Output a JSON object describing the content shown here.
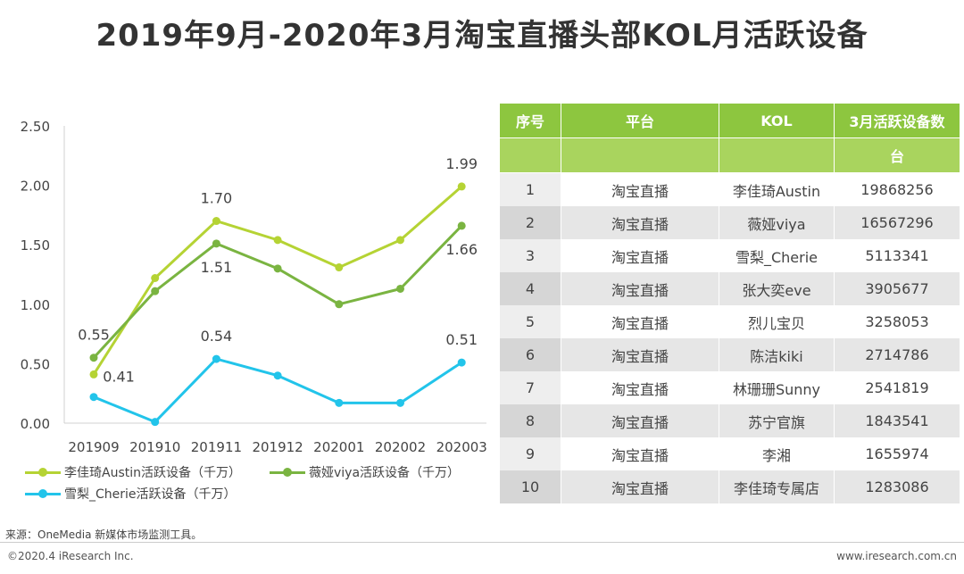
{
  "title": "2019年9月-2020年3月淘宝直播头部KOL月活跃设备",
  "chart_data": {
    "type": "line",
    "categories": [
      "201909",
      "201910",
      "201911",
      "201912",
      "202001",
      "202002",
      "202003"
    ],
    "series": [
      {
        "name": "李佳琦Austin活跃设备（千万）",
        "color": "#b5d334",
        "values": [
          0.41,
          1.22,
          1.7,
          1.54,
          1.31,
          1.54,
          1.99
        ],
        "labels": [
          "0.41",
          null,
          "1.70",
          null,
          null,
          null,
          "1.99"
        ]
      },
      {
        "name": "薇娅viya活跃设备（千万）",
        "color": "#7ab441",
        "values": [
          0.55,
          1.11,
          1.51,
          1.3,
          1.0,
          1.13,
          1.66
        ],
        "labels": [
          "0.55",
          null,
          "1.51",
          null,
          null,
          null,
          "1.66"
        ]
      },
      {
        "name": "雪梨_Cherie活跃设备（千万）",
        "color": "#22c4ea",
        "values": [
          0.22,
          0.01,
          0.54,
          0.4,
          0.17,
          0.17,
          0.51
        ],
        "labels": [
          null,
          null,
          "0.54",
          null,
          null,
          null,
          "0.51"
        ]
      }
    ],
    "ylim": [
      0,
      2.5
    ],
    "yticks": [
      "0.00",
      "0.50",
      "1.00",
      "1.50",
      "2.00",
      "2.50"
    ],
    "ytick_values": [
      0,
      0.5,
      1.0,
      1.5,
      2.0,
      2.5
    ],
    "xlabel": "",
    "ylabel": "",
    "grid": false,
    "legend": "bottom"
  },
  "table": {
    "headers": [
      "序号",
      "平台",
      "KOL",
      "3月活跃设备数"
    ],
    "unit": "台",
    "rows": [
      {
        "idx": "1",
        "platform": "淘宝直播",
        "kol": "李佳琦Austin",
        "devices": "19868256"
      },
      {
        "idx": "2",
        "platform": "淘宝直播",
        "kol": "薇娅viya",
        "devices": "16567296"
      },
      {
        "idx": "3",
        "platform": "淘宝直播",
        "kol": "雪梨_Cherie",
        "devices": "5113341"
      },
      {
        "idx": "4",
        "platform": "淘宝直播",
        "kol": "张大奕eve",
        "devices": "3905677"
      },
      {
        "idx": "5",
        "platform": "淘宝直播",
        "kol": "烈儿宝贝",
        "devices": "3258053"
      },
      {
        "idx": "6",
        "platform": "淘宝直播",
        "kol": "陈洁kiki",
        "devices": "2714786"
      },
      {
        "idx": "7",
        "platform": "淘宝直播",
        "kol": "林珊珊Sunny",
        "devices": "2541819"
      },
      {
        "idx": "8",
        "platform": "淘宝直播",
        "kol": "苏宁官旗",
        "devices": "1843541"
      },
      {
        "idx": "9",
        "platform": "淘宝直播",
        "kol": "李湘",
        "devices": "1655974"
      },
      {
        "idx": "10",
        "platform": "淘宝直播",
        "kol": "李佳琦专属店",
        "devices": "1283086"
      }
    ]
  },
  "footer": {
    "source": "来源：OneMedia 新媒体市场监测工具。",
    "copyright": "©2020.4 iResearch Inc.",
    "site": "www.iresearch.com.cn"
  }
}
